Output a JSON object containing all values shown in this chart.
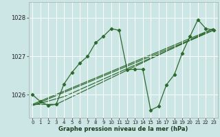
{
  "title": "Graphe pression niveau de la mer (hPa)",
  "bg_color": "#cce5e5",
  "grid_color": "#ffffff",
  "line_color": "#2d6a2d",
  "xlim": [
    -0.5,
    23.5
  ],
  "ylim": [
    1025.4,
    1028.4
  ],
  "yticks": [
    1026,
    1027,
    1028
  ],
  "xticks": [
    0,
    1,
    2,
    3,
    4,
    5,
    6,
    7,
    8,
    9,
    10,
    11,
    12,
    13,
    14,
    15,
    16,
    17,
    18,
    19,
    20,
    21,
    22,
    23
  ],
  "series1": {
    "x": [
      0,
      1,
      2,
      3,
      4,
      5,
      6,
      7,
      8,
      9,
      10,
      11,
      12,
      13,
      14,
      15,
      16,
      17,
      18,
      19,
      20,
      21,
      22,
      23
    ],
    "y": [
      1026.0,
      1025.82,
      1025.72,
      1025.75,
      1026.28,
      1026.58,
      1026.82,
      1027.0,
      1027.35,
      1027.52,
      1027.72,
      1027.67,
      1026.65,
      1026.66,
      1026.66,
      1025.6,
      1025.7,
      1026.26,
      1026.52,
      1027.08,
      1027.52,
      1027.95,
      1027.72,
      1027.68
    ]
  },
  "series_trend1": {
    "x": [
      0,
      23
    ],
    "y": [
      1025.72,
      1027.68
    ]
  },
  "series_trend2": {
    "x": [
      0,
      23
    ],
    "y": [
      1025.75,
      1027.72
    ]
  },
  "series_trend3": {
    "x": [
      0,
      4,
      23
    ],
    "y": [
      1025.72,
      1025.95,
      1027.68
    ]
  },
  "series_trend4": {
    "x": [
      0,
      3,
      23
    ],
    "y": [
      1025.75,
      1025.75,
      1027.72
    ]
  }
}
